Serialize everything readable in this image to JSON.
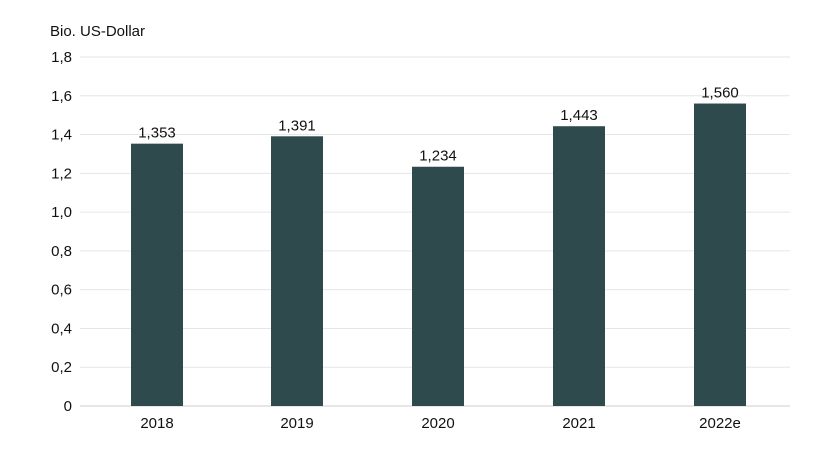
{
  "chart_data": {
    "type": "bar",
    "ylabel": "Bio. US-Dollar",
    "categories": [
      "2018",
      "2019",
      "2020",
      "2021",
      "2022e"
    ],
    "values": [
      1.353,
      1.391,
      1.234,
      1.443,
      1.56
    ],
    "value_labels": [
      "1,353",
      "1,391",
      "1,234",
      "1,443",
      "1,560"
    ],
    "ylim": [
      0,
      1.8
    ],
    "yticks": [
      0,
      0.2,
      0.4,
      0.6,
      0.8,
      1.0,
      1.2,
      1.4,
      1.6,
      1.8
    ],
    "ytick_labels": [
      "0",
      "0,2",
      "0,4",
      "0,6",
      "0,8",
      "1,0",
      "1,2",
      "1,4",
      "1,6",
      "1,8"
    ],
    "grid": true,
    "legend": "none",
    "bar_color": "#2e4a4c"
  }
}
